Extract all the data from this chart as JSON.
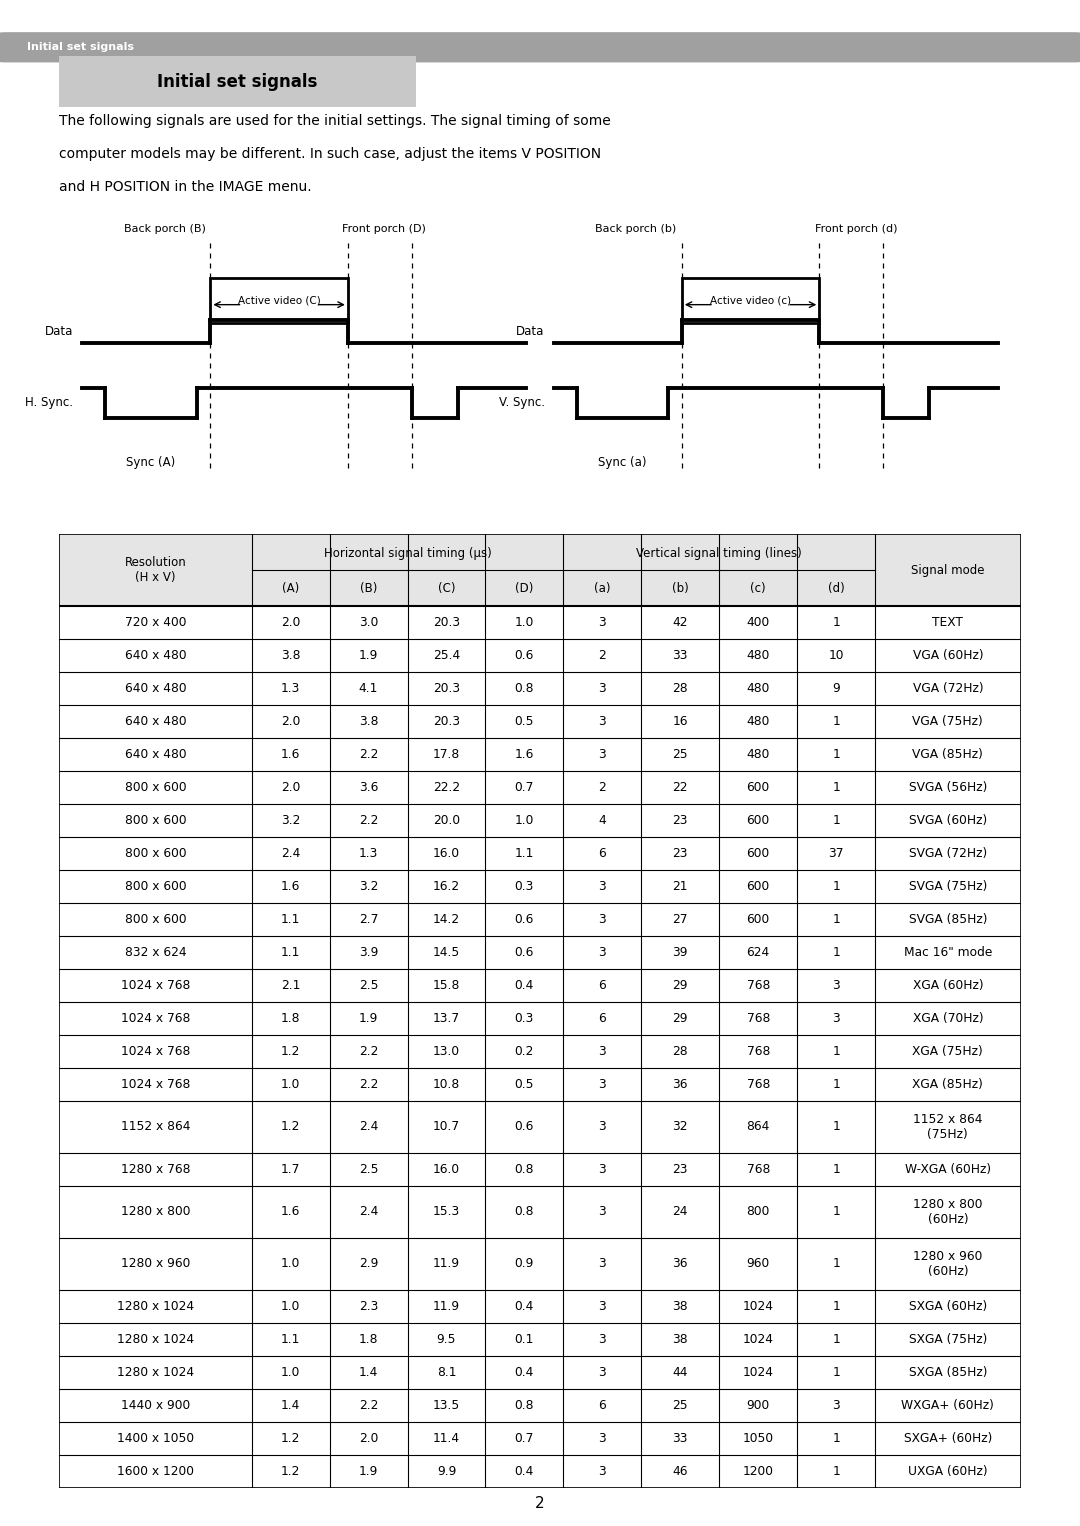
{
  "header_bar_color": "#a0a0a0",
  "header_bar_text": "Initial set signals",
  "header_bar_text_color": "#ffffff",
  "title_box_color": "#c8c8c8",
  "title_text": "Initial set signals",
  "title_text_color": "#000000",
  "body_text_line1": "The following signals are used for the initial settings. The signal timing of some",
  "body_text_line2": "computer models may be different. In such case, adjust the items V POSITION",
  "body_text_line3": "and H POSITION in the IMAGE menu.",
  "page_number": "2",
  "table_data": [
    [
      "720 x 400",
      "2.0",
      "3.0",
      "20.3",
      "1.0",
      "3",
      "42",
      "400",
      "1",
      "TEXT"
    ],
    [
      "640 x 480",
      "3.8",
      "1.9",
      "25.4",
      "0.6",
      "2",
      "33",
      "480",
      "10",
      "VGA (60Hz)"
    ],
    [
      "640 x 480",
      "1.3",
      "4.1",
      "20.3",
      "0.8",
      "3",
      "28",
      "480",
      "9",
      "VGA (72Hz)"
    ],
    [
      "640 x 480",
      "2.0",
      "3.8",
      "20.3",
      "0.5",
      "3",
      "16",
      "480",
      "1",
      "VGA (75Hz)"
    ],
    [
      "640 x 480",
      "1.6",
      "2.2",
      "17.8",
      "1.6",
      "3",
      "25",
      "480",
      "1",
      "VGA (85Hz)"
    ],
    [
      "800 x 600",
      "2.0",
      "3.6",
      "22.2",
      "0.7",
      "2",
      "22",
      "600",
      "1",
      "SVGA (56Hz)"
    ],
    [
      "800 x 600",
      "3.2",
      "2.2",
      "20.0",
      "1.0",
      "4",
      "23",
      "600",
      "1",
      "SVGA (60Hz)"
    ],
    [
      "800 x 600",
      "2.4",
      "1.3",
      "16.0",
      "1.1",
      "6",
      "23",
      "600",
      "37",
      "SVGA (72Hz)"
    ],
    [
      "800 x 600",
      "1.6",
      "3.2",
      "16.2",
      "0.3",
      "3",
      "21",
      "600",
      "1",
      "SVGA (75Hz)"
    ],
    [
      "800 x 600",
      "1.1",
      "2.7",
      "14.2",
      "0.6",
      "3",
      "27",
      "600",
      "1",
      "SVGA (85Hz)"
    ],
    [
      "832 x 624",
      "1.1",
      "3.9",
      "14.5",
      "0.6",
      "3",
      "39",
      "624",
      "1",
      "Mac 16\" mode"
    ],
    [
      "1024 x 768",
      "2.1",
      "2.5",
      "15.8",
      "0.4",
      "6",
      "29",
      "768",
      "3",
      "XGA (60Hz)"
    ],
    [
      "1024 x 768",
      "1.8",
      "1.9",
      "13.7",
      "0.3",
      "6",
      "29",
      "768",
      "3",
      "XGA (70Hz)"
    ],
    [
      "1024 x 768",
      "1.2",
      "2.2",
      "13.0",
      "0.2",
      "3",
      "28",
      "768",
      "1",
      "XGA (75Hz)"
    ],
    [
      "1024 x 768",
      "1.0",
      "2.2",
      "10.8",
      "0.5",
      "3",
      "36",
      "768",
      "1",
      "XGA (85Hz)"
    ],
    [
      "1152 x 864",
      "1.2",
      "2.4",
      "10.7",
      "0.6",
      "3",
      "32",
      "864",
      "1",
      "1152 x 864\n(75Hz)"
    ],
    [
      "1280 x 768",
      "1.7",
      "2.5",
      "16.0",
      "0.8",
      "3",
      "23",
      "768",
      "1",
      "W-XGA (60Hz)"
    ],
    [
      "1280 x 800",
      "1.6",
      "2.4",
      "15.3",
      "0.8",
      "3",
      "24",
      "800",
      "1",
      "1280 x 800\n(60Hz)"
    ],
    [
      "1280 x 960",
      "1.0",
      "2.9",
      "11.9",
      "0.9",
      "3",
      "36",
      "960",
      "1",
      "1280 x 960\n(60Hz)"
    ],
    [
      "1280 x 1024",
      "1.0",
      "2.3",
      "11.9",
      "0.4",
      "3",
      "38",
      "1024",
      "1",
      "SXGA (60Hz)"
    ],
    [
      "1280 x 1024",
      "1.1",
      "1.8",
      "9.5",
      "0.1",
      "3",
      "38",
      "1024",
      "1",
      "SXGA (75Hz)"
    ],
    [
      "1280 x 1024",
      "1.0",
      "1.4",
      "8.1",
      "0.4",
      "3",
      "44",
      "1024",
      "1",
      "SXGA (85Hz)"
    ],
    [
      "1440 x 900",
      "1.4",
      "2.2",
      "13.5",
      "0.8",
      "6",
      "25",
      "900",
      "3",
      "WXGA+ (60Hz)"
    ],
    [
      "1400 x 1050",
      "1.2",
      "2.0",
      "11.4",
      "0.7",
      "3",
      "33",
      "1050",
      "1",
      "SXGA+ (60Hz)"
    ],
    [
      "1600 x 1200",
      "1.2",
      "1.9",
      "9.9",
      "0.4",
      "3",
      "46",
      "1200",
      "1",
      "UXGA (60Hz)"
    ]
  ],
  "multiline_rows": [
    15,
    17,
    18
  ]
}
